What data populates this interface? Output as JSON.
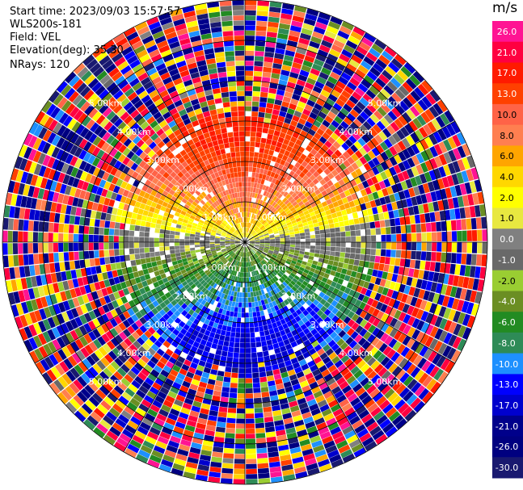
{
  "chart_data": {
    "type": "heatmap",
    "subtype": "radar-ppi",
    "info": {
      "start_time": "Start time: 2023/09/03 15:57:57",
      "instrument": "WLS200s-181",
      "field": "Field: VEL",
      "elevation": "Elevation(deg): 35.30",
      "nrays": "NRays: 120"
    },
    "n_rays": 120,
    "range_km_max": 6.0,
    "range_rings_km": [
      1,
      2,
      3,
      4,
      5,
      6
    ],
    "range_ring_labels": [
      "1.00km",
      "2.00km",
      "3.00km",
      "4.00km",
      "5.00km"
    ],
    "spoke_azimuths_deg": [
      0,
      30,
      60,
      90,
      120,
      150,
      180,
      210,
      240,
      270,
      300,
      330
    ],
    "colorbar": {
      "title": "m/s",
      "ticks": [
        "26.0",
        "21.0",
        "17.0",
        "13.0",
        "10.0",
        "8.0",
        "6.0",
        "4.0",
        "2.0",
        "1.0",
        "0.0",
        "-1.0",
        "-2.0",
        "-4.0",
        "-6.0",
        "-8.0",
        "-10.0",
        "-13.0",
        "-17.0",
        "-21.0",
        "-26.0",
        "-30.0"
      ],
      "bins": [
        {
          "min": 26,
          "color": "#ff1493"
        },
        {
          "min": 21,
          "color": "#ff0040"
        },
        {
          "min": 17,
          "color": "#ff1a00"
        },
        {
          "min": 13,
          "color": "#ff4000"
        },
        {
          "min": 10,
          "color": "#ff6347"
        },
        {
          "min": 8,
          "color": "#ff7f50"
        },
        {
          "min": 6,
          "color": "#ffa500"
        },
        {
          "min": 4,
          "color": "#ffd700"
        },
        {
          "min": 2,
          "color": "#ffff00"
        },
        {
          "min": 1,
          "color": "#e8e840"
        },
        {
          "min": 0,
          "color": "#808080"
        },
        {
          "min": -1,
          "color": "#696969"
        },
        {
          "min": -2,
          "color": "#9acd32"
        },
        {
          "min": -4,
          "color": "#6b8e23"
        },
        {
          "min": -6,
          "color": "#228b22"
        },
        {
          "min": -8,
          "color": "#2e8b57"
        },
        {
          "min": -10,
          "color": "#1e90ff"
        },
        {
          "min": -13,
          "color": "#0000ff"
        },
        {
          "min": -17,
          "color": "#0000cd"
        },
        {
          "min": -21,
          "color": "#00008b"
        },
        {
          "min": -26,
          "color": "#000080"
        },
        {
          "min": -30,
          "color": "#191970"
        }
      ]
    },
    "velocity_pattern": {
      "description": "near-field dipole: positive (warm) to the north, negative (cool) to the south; far-field noise",
      "near_range_km": 3.2,
      "north_peak_ms": 18,
      "south_peak_ms": -14
    }
  }
}
